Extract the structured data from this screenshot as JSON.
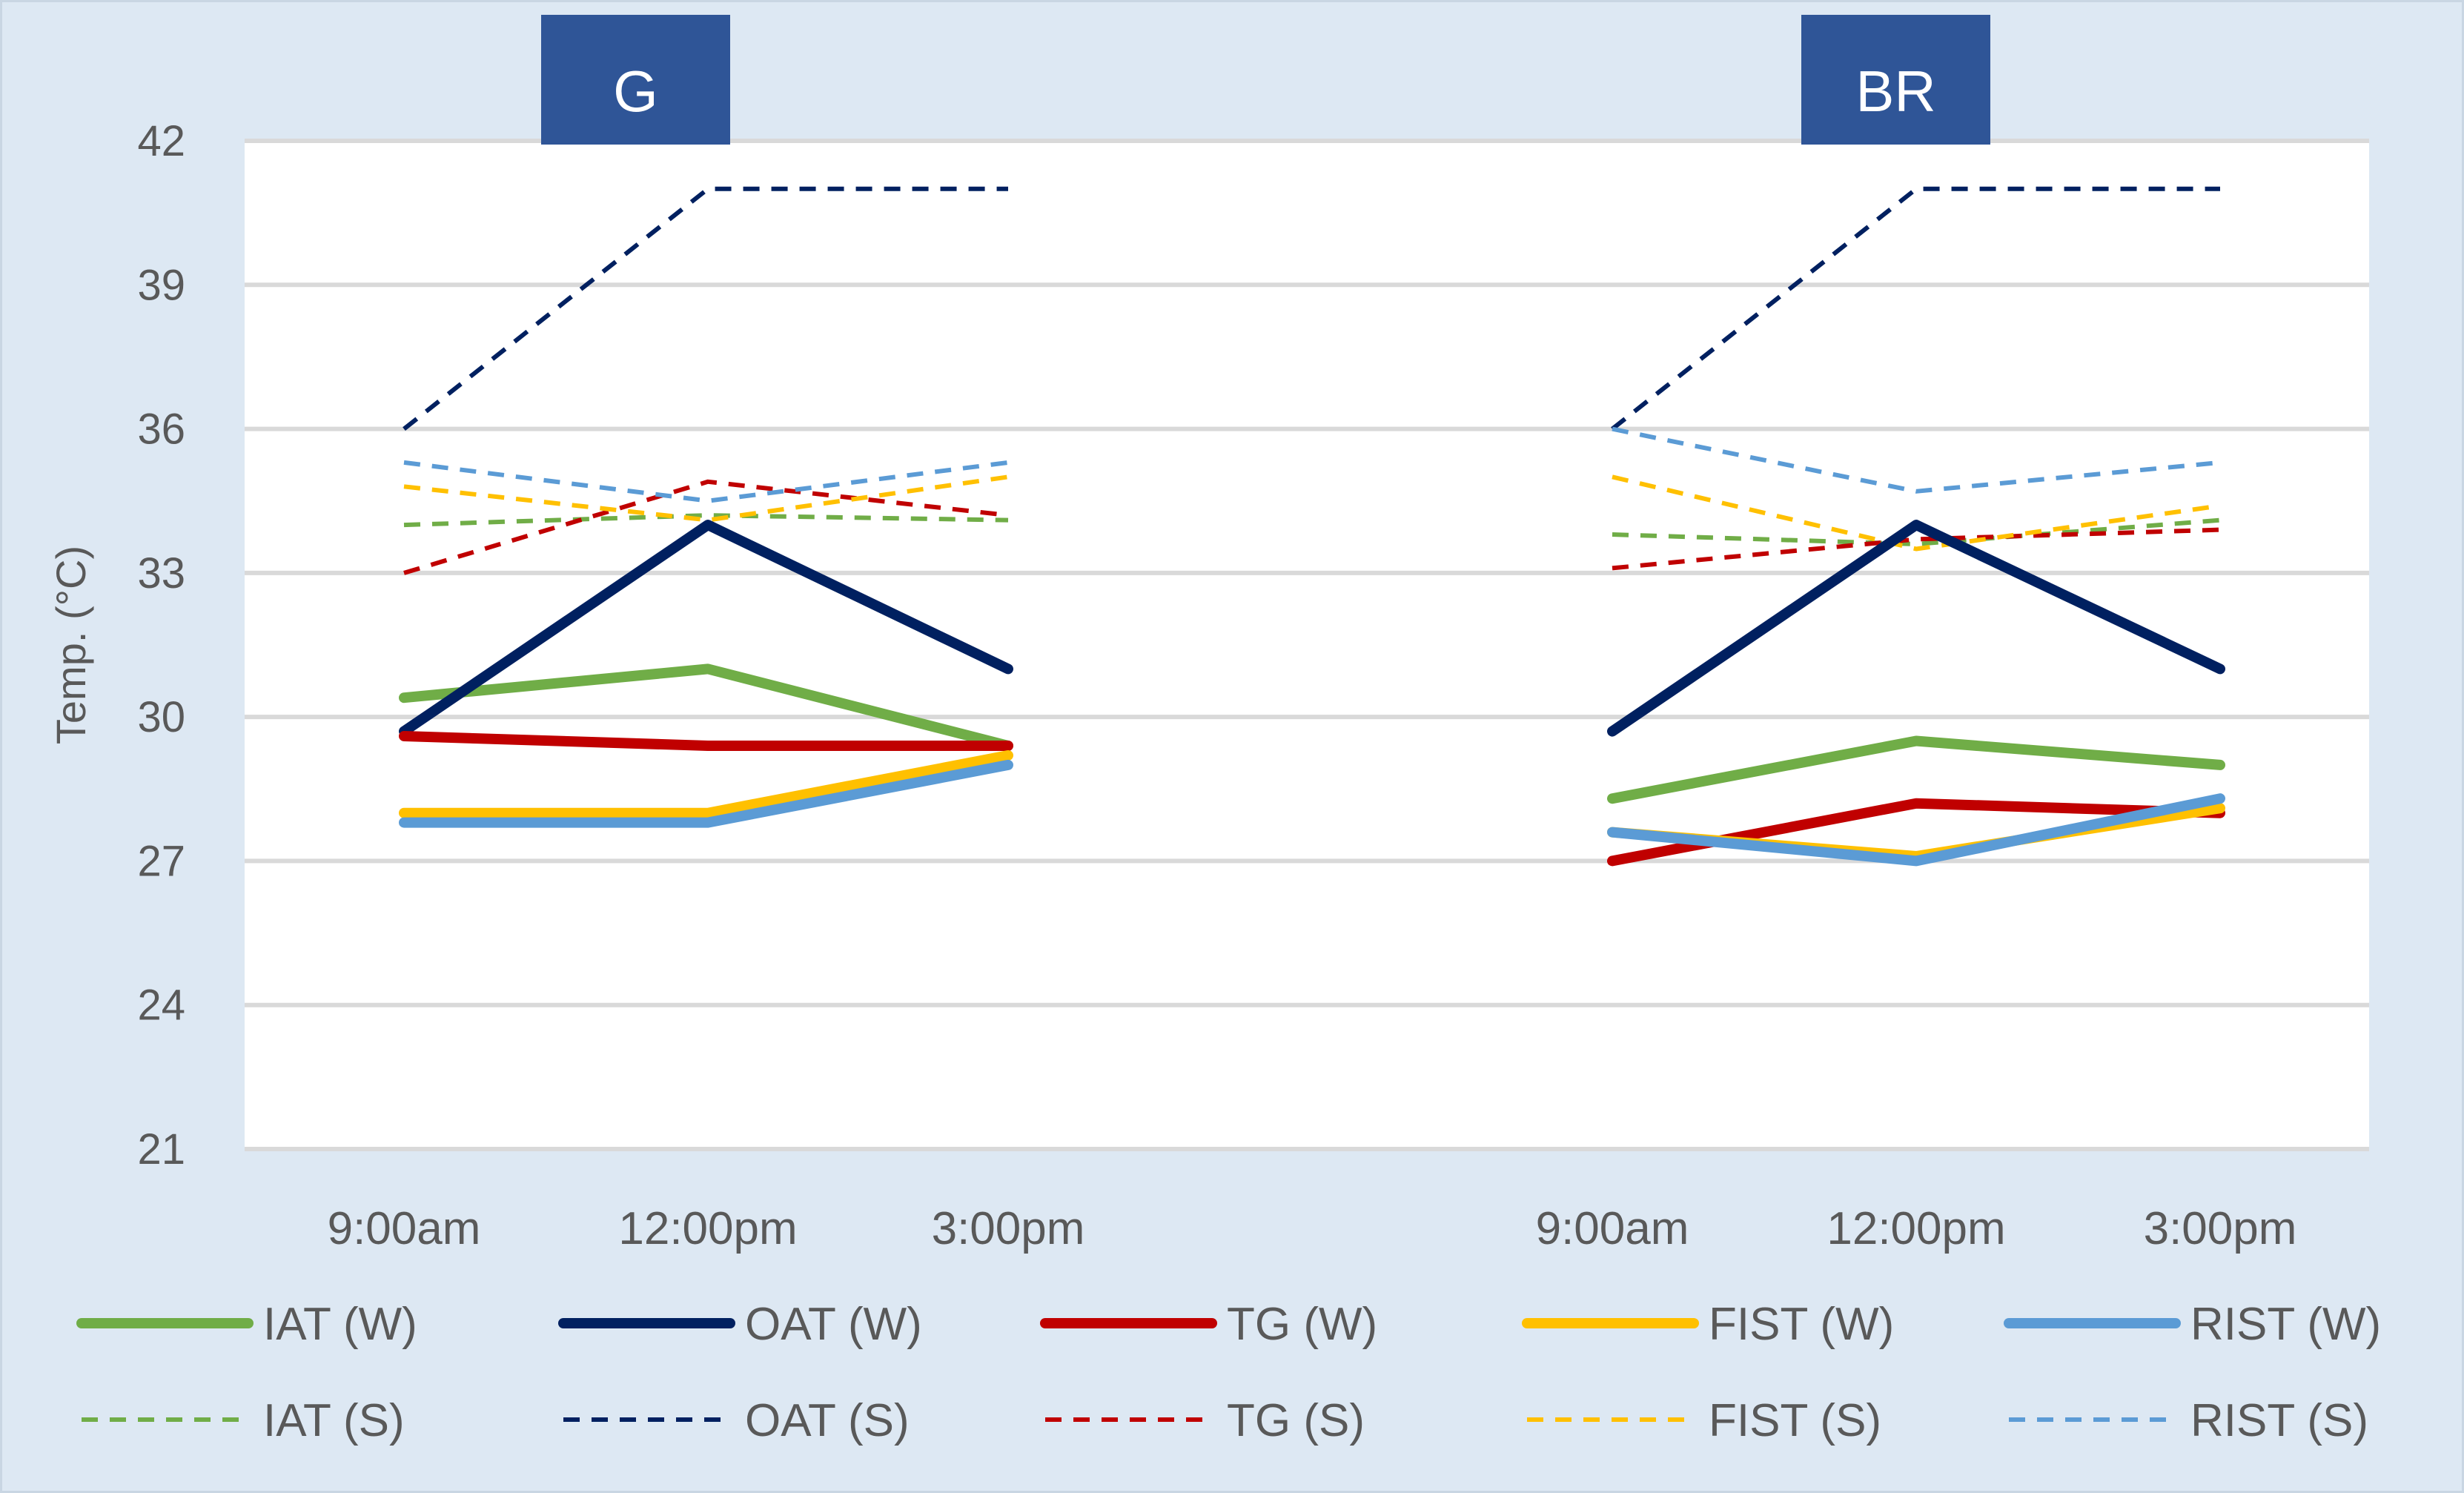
{
  "chart_data": {
    "type": "line",
    "ylabel": "Temp. (°C)",
    "ylim": [
      21,
      42
    ],
    "yticks": [
      21,
      24,
      27,
      30,
      33,
      36,
      39,
      42
    ],
    "grid": true,
    "legend_position": "bottom",
    "panels": [
      {
        "name": "G",
        "categories": [
          "9:00am",
          "12:00pm",
          "3:00pm"
        ],
        "series": [
          {
            "name": "IAT (W)",
            "values": [
              30.4,
              31.0,
              29.4
            ]
          },
          {
            "name": "OAT (W)",
            "values": [
              29.7,
              34.0,
              31.0
            ]
          },
          {
            "name": "TG (W)",
            "values": [
              29.6,
              29.4,
              29.4
            ]
          },
          {
            "name": "FIST (W)",
            "values": [
              28.0,
              28.0,
              29.2
            ]
          },
          {
            "name": "RIST (W)",
            "values": [
              27.8,
              27.8,
              29.0
            ]
          },
          {
            "name": "IAT (S)",
            "values": [
              34.0,
              34.2,
              34.1
            ]
          },
          {
            "name": "OAT (S)",
            "values": [
              36.0,
              41.0,
              41.0
            ]
          },
          {
            "name": "TG (S)",
            "values": [
              33.0,
              34.9,
              34.2
            ]
          },
          {
            "name": "FIST (S)",
            "values": [
              34.8,
              34.1,
              35.0
            ]
          },
          {
            "name": "RIST (S)",
            "values": [
              35.3,
              34.5,
              35.3
            ]
          }
        ]
      },
      {
        "name": "BR",
        "categories": [
          "9:00am",
          "12:00pm",
          "3:00pm"
        ],
        "series": [
          {
            "name": "IAT (W)",
            "values": [
              28.3,
              29.5,
              29.0
            ]
          },
          {
            "name": "OAT (W)",
            "values": [
              29.7,
              34.0,
              31.0
            ]
          },
          {
            "name": "TG (W)",
            "values": [
              27.0,
              28.2,
              28.0
            ]
          },
          {
            "name": "FIST (W)",
            "values": [
              27.6,
              27.1,
              28.1
            ]
          },
          {
            "name": "RIST (W)",
            "values": [
              27.6,
              27.0,
              28.3
            ]
          },
          {
            "name": "IAT (S)",
            "values": [
              33.8,
              33.6,
              34.1
            ]
          },
          {
            "name": "OAT (S)",
            "values": [
              36.0,
              41.0,
              41.0
            ]
          },
          {
            "name": "TG (S)",
            "values": [
              33.1,
              33.7,
              33.9
            ]
          },
          {
            "name": "FIST (S)",
            "values": [
              35.0,
              33.5,
              34.4
            ]
          },
          {
            "name": "RIST (S)",
            "values": [
              36.0,
              34.7,
              35.3
            ]
          }
        ]
      }
    ],
    "legend": [
      {
        "name": "IAT (W)",
        "color": "#70ad47",
        "style": "solid"
      },
      {
        "name": "OAT (W)",
        "color": "#002060",
        "style": "solid"
      },
      {
        "name": "TG (W)",
        "color": "#c00000",
        "style": "solid"
      },
      {
        "name": "FIST (W)",
        "color": "#ffc000",
        "style": "solid"
      },
      {
        "name": "RIST (W)",
        "color": "#5b9bd5",
        "style": "solid"
      },
      {
        "name": "IAT (S)",
        "color": "#70ad47",
        "style": "dashed"
      },
      {
        "name": "OAT (S)",
        "color": "#002060",
        "style": "dashed"
      },
      {
        "name": "TG (S)",
        "color": "#c00000",
        "style": "dashed"
      },
      {
        "name": "FIST (S)",
        "color": "#ffc000",
        "style": "dashed"
      },
      {
        "name": "RIST (S)",
        "color": "#5b9bd5",
        "style": "dashed"
      }
    ]
  }
}
